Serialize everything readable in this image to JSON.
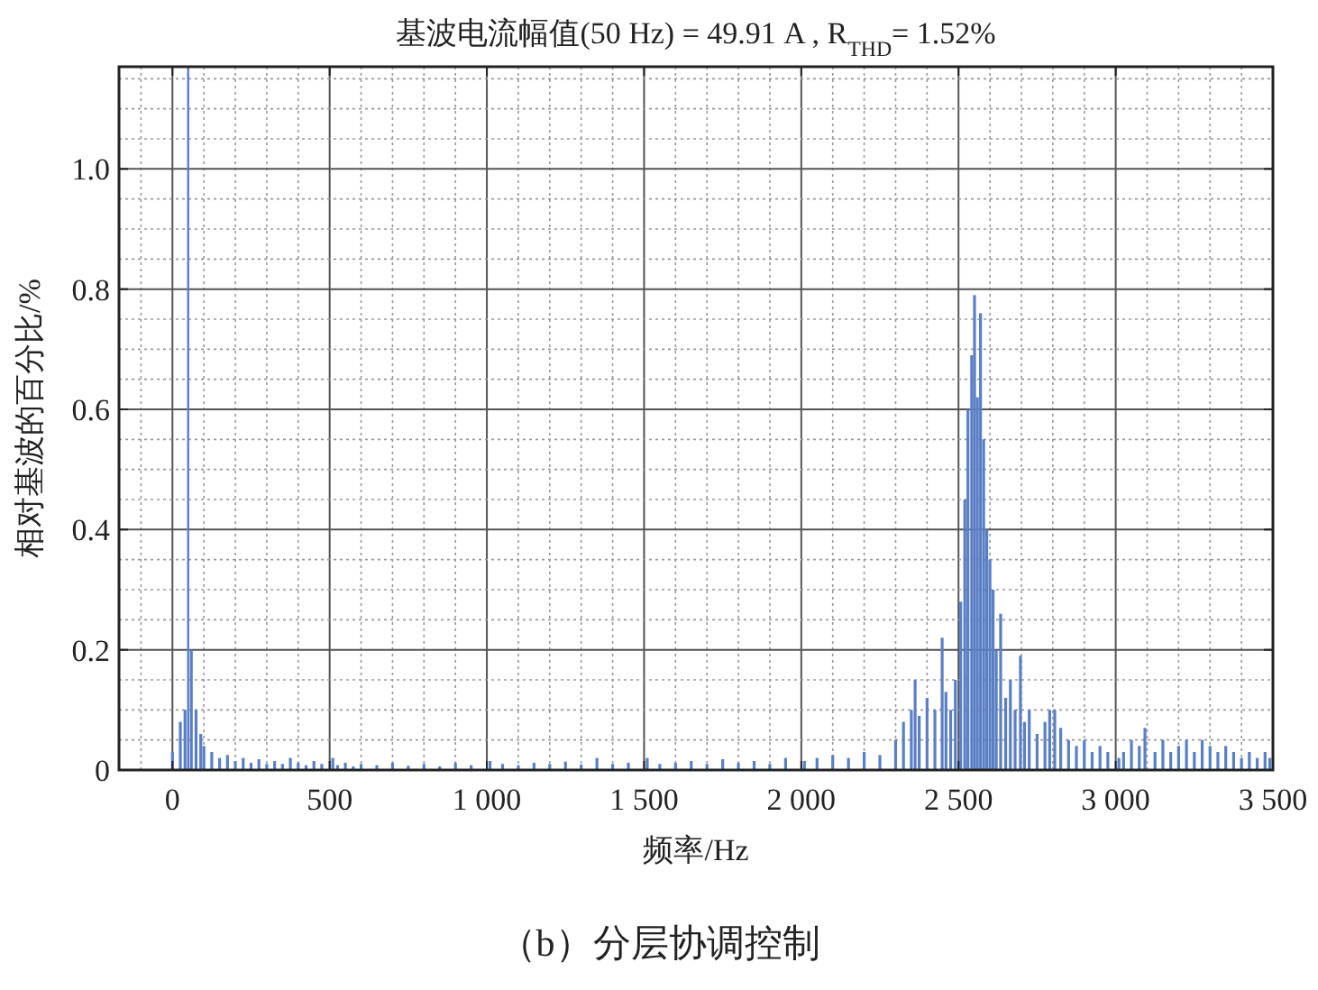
{
  "chart_data": {
    "type": "bar",
    "title": "基波电流幅值(50 Hz) = 49.91 A , R$_{THD}$= 1.52%",
    "xlabel": "频率/Hz",
    "ylabel": "相对基波的百分比/%",
    "annotations": [
      "（b）分层协调控制"
    ],
    "color": "#5b7fc4",
    "x": [
      0,
      25,
      40,
      60,
      75,
      90,
      100,
      125,
      150,
      175,
      200,
      225,
      250,
      275,
      300,
      325,
      350,
      375,
      400,
      425,
      450,
      475,
      510,
      525,
      550,
      575,
      600,
      650,
      700,
      750,
      800,
      850,
      900,
      950,
      1010,
      1050,
      1100,
      1150,
      1200,
      1250,
      1300,
      1350,
      1400,
      1450,
      1510,
      1550,
      1600,
      1650,
      1700,
      1750,
      1800,
      1850,
      1900,
      1950,
      2010,
      2050,
      2100,
      2150,
      2200,
      2250,
      2300,
      2325,
      2350,
      2362,
      2375,
      2400,
      2425,
      2448,
      2460,
      2475,
      2490,
      2507,
      2520,
      2530,
      2542,
      2551,
      2560,
      2570,
      2580,
      2590,
      2600,
      2610,
      2620,
      2634,
      2650,
      2665,
      2680,
      2697,
      2710,
      2725,
      2750,
      2775,
      2790,
      2806,
      2825,
      2850,
      2875,
      2900,
      2925,
      2950,
      2975,
      3010,
      3025,
      3050,
      3075,
      3093,
      3125,
      3150,
      3175,
      3200,
      3225,
      3250,
      3275,
      3300,
      3325,
      3350,
      3375,
      3400,
      3425,
      3450,
      3475,
      3490
    ],
    "values": [
      0.03,
      0.08,
      0.1,
      0.2,
      0.1,
      0.06,
      0.04,
      0.03,
      0.02,
      0.025,
      0.015,
      0.02,
      0.012,
      0.018,
      0.01,
      0.015,
      0.01,
      0.02,
      0.012,
      0.008,
      0.015,
      0.01,
      0.02,
      0.008,
      0.012,
      0.006,
      0.01,
      0.008,
      0.012,
      0.007,
      0.01,
      0.006,
      0.012,
      0.008,
      0.015,
      0.01,
      0.008,
      0.012,
      0.01,
      0.014,
      0.009,
      0.02,
      0.01,
      0.012,
      0.02,
      0.01,
      0.012,
      0.015,
      0.01,
      0.018,
      0.012,
      0.015,
      0.01,
      0.02,
      0.015,
      0.02,
      0.025,
      0.02,
      0.03,
      0.025,
      0.05,
      0.08,
      0.1,
      0.15,
      0.09,
      0.12,
      0.1,
      0.22,
      0.13,
      0.1,
      0.15,
      0.28,
      0.45,
      0.6,
      0.69,
      0.79,
      0.62,
      0.76,
      0.55,
      0.4,
      0.35,
      0.3,
      0.2,
      0.26,
      0.12,
      0.15,
      0.1,
      0.19,
      0.08,
      0.1,
      0.06,
      0.08,
      0.1,
      0.1,
      0.07,
      0.05,
      0.04,
      0.05,
      0.03,
      0.04,
      0.03,
      0.02,
      0.03,
      0.05,
      0.04,
      0.07,
      0.03,
      0.05,
      0.03,
      0.04,
      0.05,
      0.03,
      0.05,
      0.04,
      0.03,
      0.04,
      0.03,
      0.02,
      0.03,
      0.02,
      0.03,
      0.02
    ],
    "xlim": [
      -170,
      3500
    ],
    "ylim": [
      0,
      1.17
    ],
    "xticks": [
      0,
      500,
      {
        "value": 1000,
        "label": "1 000"
      },
      {
        "value": 1500,
        "label": "1 500"
      },
      {
        "value": 2000,
        "label": "2 000"
      },
      {
        "value": 2500,
        "label": "2 500"
      },
      {
        "value": 3000,
        "label": "3 000"
      },
      {
        "value": 3500,
        "label": "3 500"
      }
    ],
    "yticks": [
      0,
      0.2,
      0.4,
      0.6,
      0.8,
      {
        "value": 1,
        "label": "1.0"
      }
    ],
    "grid": true,
    "ref_lines": [
      {
        "axis": "x",
        "value": 50,
        "color": "#5b7fc4"
      }
    ]
  }
}
